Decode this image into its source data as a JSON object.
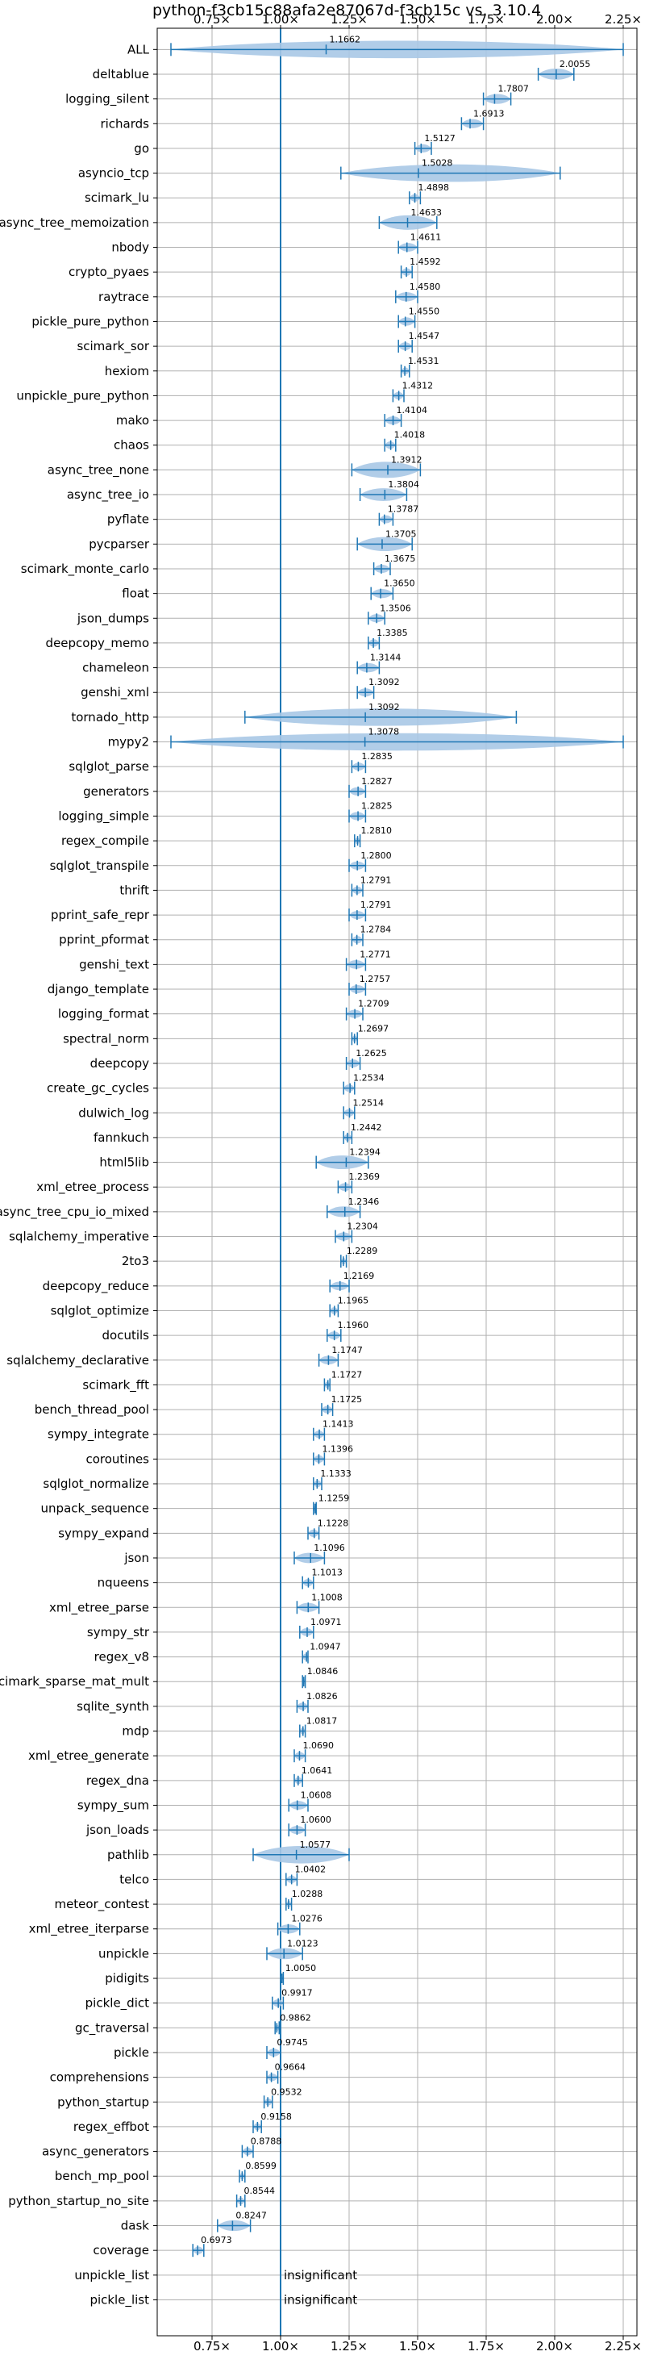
{
  "chart_data": {
    "type": "violin",
    "title": "python-f3cb15c88afa2e87067d-f3cb15c vs. 3.10.4",
    "xlim": [
      0.55,
      2.3
    ],
    "x_ticks": [
      0.75,
      1.0,
      1.25,
      1.5,
      1.75,
      2.0,
      2.25
    ],
    "x_tick_labels": [
      "0.75×",
      "1.00×",
      "1.25×",
      "1.50×",
      "1.75×",
      "2.00×",
      "2.25×"
    ],
    "reference_line": 1.0,
    "grid": true,
    "insignificant_text": "insignificant",
    "series": [
      {
        "name": "ALL",
        "value": "1.1662",
        "mean": 1.1662,
        "min": 0.6,
        "max": 2.25
      },
      {
        "name": "deltablue",
        "value": "2.0055",
        "mean": 2.0055,
        "min": 1.94,
        "max": 2.07
      },
      {
        "name": "logging_silent",
        "value": "1.7807",
        "mean": 1.7807,
        "min": 1.74,
        "max": 1.84
      },
      {
        "name": "richards",
        "value": "1.6913",
        "mean": 1.6913,
        "min": 1.66,
        "max": 1.74
      },
      {
        "name": "go",
        "value": "1.5127",
        "mean": 1.5127,
        "min": 1.49,
        "max": 1.55
      },
      {
        "name": "asyncio_tcp",
        "value": "1.5028",
        "mean": 1.5028,
        "min": 1.22,
        "max": 2.02
      },
      {
        "name": "scimark_lu",
        "value": "1.4898",
        "mean": 1.4898,
        "min": 1.47,
        "max": 1.51
      },
      {
        "name": "async_tree_memoization",
        "value": "1.4633",
        "mean": 1.4633,
        "min": 1.36,
        "max": 1.57
      },
      {
        "name": "nbody",
        "value": "1.4611",
        "mean": 1.4611,
        "min": 1.43,
        "max": 1.5
      },
      {
        "name": "crypto_pyaes",
        "value": "1.4592",
        "mean": 1.4592,
        "min": 1.44,
        "max": 1.48
      },
      {
        "name": "raytrace",
        "value": "1.4580",
        "mean": 1.458,
        "min": 1.42,
        "max": 1.5
      },
      {
        "name": "pickle_pure_python",
        "value": "1.4550",
        "mean": 1.455,
        "min": 1.43,
        "max": 1.49
      },
      {
        "name": "scimark_sor",
        "value": "1.4547",
        "mean": 1.4547,
        "min": 1.43,
        "max": 1.48
      },
      {
        "name": "hexiom",
        "value": "1.4531",
        "mean": 1.4531,
        "min": 1.44,
        "max": 1.47
      },
      {
        "name": "unpickle_pure_python",
        "value": "1.4312",
        "mean": 1.4312,
        "min": 1.41,
        "max": 1.45
      },
      {
        "name": "mako",
        "value": "1.4104",
        "mean": 1.4104,
        "min": 1.38,
        "max": 1.44
      },
      {
        "name": "chaos",
        "value": "1.4018",
        "mean": 1.4018,
        "min": 1.38,
        "max": 1.42
      },
      {
        "name": "async_tree_none",
        "value": "1.3912",
        "mean": 1.3912,
        "min": 1.26,
        "max": 1.51
      },
      {
        "name": "async_tree_io",
        "value": "1.3804",
        "mean": 1.3804,
        "min": 1.29,
        "max": 1.46
      },
      {
        "name": "pyflate",
        "value": "1.3787",
        "mean": 1.3787,
        "min": 1.36,
        "max": 1.41
      },
      {
        "name": "pycparser",
        "value": "1.3705",
        "mean": 1.3705,
        "min": 1.28,
        "max": 1.48
      },
      {
        "name": "scimark_monte_carlo",
        "value": "1.3675",
        "mean": 1.3675,
        "min": 1.34,
        "max": 1.4
      },
      {
        "name": "float",
        "value": "1.3650",
        "mean": 1.365,
        "min": 1.33,
        "max": 1.41
      },
      {
        "name": "json_dumps",
        "value": "1.3506",
        "mean": 1.3506,
        "min": 1.32,
        "max": 1.38
      },
      {
        "name": "deepcopy_memo",
        "value": "1.3385",
        "mean": 1.3385,
        "min": 1.32,
        "max": 1.36
      },
      {
        "name": "chameleon",
        "value": "1.3144",
        "mean": 1.3144,
        "min": 1.28,
        "max": 1.36
      },
      {
        "name": "genshi_xml",
        "value": "1.3092",
        "mean": 1.3092,
        "min": 1.28,
        "max": 1.34
      },
      {
        "name": "tornado_http",
        "value": "1.3092",
        "mean": 1.3092,
        "min": 0.87,
        "max": 1.86
      },
      {
        "name": "mypy2",
        "value": "1.3078",
        "mean": 1.3078,
        "min": 0.6,
        "max": 2.25
      },
      {
        "name": "sqlglot_parse",
        "value": "1.2835",
        "mean": 1.2835,
        "min": 1.26,
        "max": 1.31
      },
      {
        "name": "generators",
        "value": "1.2827",
        "mean": 1.2827,
        "min": 1.25,
        "max": 1.31
      },
      {
        "name": "logging_simple",
        "value": "1.2825",
        "mean": 1.2825,
        "min": 1.25,
        "max": 1.31
      },
      {
        "name": "regex_compile",
        "value": "1.2810",
        "mean": 1.281,
        "min": 1.27,
        "max": 1.29
      },
      {
        "name": "sqlglot_transpile",
        "value": "1.2800",
        "mean": 1.28,
        "min": 1.25,
        "max": 1.31
      },
      {
        "name": "thrift",
        "value": "1.2791",
        "mean": 1.2791,
        "min": 1.26,
        "max": 1.3
      },
      {
        "name": "pprint_safe_repr",
        "value": "1.2791",
        "mean": 1.2791,
        "min": 1.25,
        "max": 1.31
      },
      {
        "name": "pprint_pformat",
        "value": "1.2784",
        "mean": 1.2784,
        "min": 1.26,
        "max": 1.3
      },
      {
        "name": "genshi_text",
        "value": "1.2771",
        "mean": 1.2771,
        "min": 1.24,
        "max": 1.31
      },
      {
        "name": "django_template",
        "value": "1.2757",
        "mean": 1.2757,
        "min": 1.25,
        "max": 1.31
      },
      {
        "name": "logging_format",
        "value": "1.2709",
        "mean": 1.2709,
        "min": 1.24,
        "max": 1.3
      },
      {
        "name": "spectral_norm",
        "value": "1.2697",
        "mean": 1.2697,
        "min": 1.26,
        "max": 1.28
      },
      {
        "name": "deepcopy",
        "value": "1.2625",
        "mean": 1.2625,
        "min": 1.24,
        "max": 1.29
      },
      {
        "name": "create_gc_cycles",
        "value": "1.2534",
        "mean": 1.2534,
        "min": 1.23,
        "max": 1.27
      },
      {
        "name": "dulwich_log",
        "value": "1.2514",
        "mean": 1.2514,
        "min": 1.23,
        "max": 1.27
      },
      {
        "name": "fannkuch",
        "value": "1.2442",
        "mean": 1.2442,
        "min": 1.23,
        "max": 1.26
      },
      {
        "name": "html5lib",
        "value": "1.2394",
        "mean": 1.2394,
        "min": 1.13,
        "max": 1.32
      },
      {
        "name": "xml_etree_process",
        "value": "1.2369",
        "mean": 1.2369,
        "min": 1.21,
        "max": 1.26
      },
      {
        "name": "async_tree_cpu_io_mixed",
        "value": "1.2346",
        "mean": 1.2346,
        "min": 1.17,
        "max": 1.29
      },
      {
        "name": "sqlalchemy_imperative",
        "value": "1.2304",
        "mean": 1.2304,
        "min": 1.2,
        "max": 1.26
      },
      {
        "name": "2to3",
        "value": "1.2289",
        "mean": 1.2289,
        "min": 1.22,
        "max": 1.24
      },
      {
        "name": "deepcopy_reduce",
        "value": "1.2169",
        "mean": 1.2169,
        "min": 1.18,
        "max": 1.25
      },
      {
        "name": "sqlglot_optimize",
        "value": "1.1965",
        "mean": 1.1965,
        "min": 1.18,
        "max": 1.21
      },
      {
        "name": "docutils",
        "value": "1.1960",
        "mean": 1.196,
        "min": 1.17,
        "max": 1.22
      },
      {
        "name": "sqlalchemy_declarative",
        "value": "1.1747",
        "mean": 1.1747,
        "min": 1.14,
        "max": 1.21
      },
      {
        "name": "scimark_fft",
        "value": "1.1727",
        "mean": 1.1727,
        "min": 1.16,
        "max": 1.18
      },
      {
        "name": "bench_thread_pool",
        "value": "1.1725",
        "mean": 1.1725,
        "min": 1.15,
        "max": 1.19
      },
      {
        "name": "sympy_integrate",
        "value": "1.1413",
        "mean": 1.1413,
        "min": 1.12,
        "max": 1.16
      },
      {
        "name": "coroutines",
        "value": "1.1396",
        "mean": 1.1396,
        "min": 1.12,
        "max": 1.16
      },
      {
        "name": "sqlglot_normalize",
        "value": "1.1333",
        "mean": 1.1333,
        "min": 1.12,
        "max": 1.15
      },
      {
        "name": "unpack_sequence",
        "value": "1.1259",
        "mean": 1.1259,
        "min": 1.12,
        "max": 1.13
      },
      {
        "name": "sympy_expand",
        "value": "1.1228",
        "mean": 1.1228,
        "min": 1.1,
        "max": 1.14
      },
      {
        "name": "json",
        "value": "1.1096",
        "mean": 1.1096,
        "min": 1.05,
        "max": 1.16
      },
      {
        "name": "nqueens",
        "value": "1.1013",
        "mean": 1.1013,
        "min": 1.08,
        "max": 1.12
      },
      {
        "name": "xml_etree_parse",
        "value": "1.1008",
        "mean": 1.1008,
        "min": 1.06,
        "max": 1.14
      },
      {
        "name": "sympy_str",
        "value": "1.0971",
        "mean": 1.0971,
        "min": 1.07,
        "max": 1.12
      },
      {
        "name": "regex_v8",
        "value": "1.0947",
        "mean": 1.0947,
        "min": 1.08,
        "max": 1.1
      },
      {
        "name": "scimark_sparse_mat_mult",
        "value": "1.0846",
        "mean": 1.0846,
        "min": 1.08,
        "max": 1.09
      },
      {
        "name": "sqlite_synth",
        "value": "1.0826",
        "mean": 1.0826,
        "min": 1.06,
        "max": 1.1
      },
      {
        "name": "mdp",
        "value": "1.0817",
        "mean": 1.0817,
        "min": 1.07,
        "max": 1.09
      },
      {
        "name": "xml_etree_generate",
        "value": "1.0690",
        "mean": 1.069,
        "min": 1.05,
        "max": 1.09
      },
      {
        "name": "regex_dna",
        "value": "1.0641",
        "mean": 1.0641,
        "min": 1.05,
        "max": 1.08
      },
      {
        "name": "sympy_sum",
        "value": "1.0608",
        "mean": 1.0608,
        "min": 1.03,
        "max": 1.1
      },
      {
        "name": "json_loads",
        "value": "1.0600",
        "mean": 1.06,
        "min": 1.03,
        "max": 1.09
      },
      {
        "name": "pathlib",
        "value": "1.0577",
        "mean": 1.0577,
        "min": 0.9,
        "max": 1.25
      },
      {
        "name": "telco",
        "value": "1.0402",
        "mean": 1.0402,
        "min": 1.02,
        "max": 1.06
      },
      {
        "name": "meteor_contest",
        "value": "1.0288",
        "mean": 1.0288,
        "min": 1.02,
        "max": 1.04
      },
      {
        "name": "xml_etree_iterparse",
        "value": "1.0276",
        "mean": 1.0276,
        "min": 0.99,
        "max": 1.07
      },
      {
        "name": "unpickle",
        "value": "1.0123",
        "mean": 1.0123,
        "min": 0.95,
        "max": 1.08
      },
      {
        "name": "pidigits",
        "value": "1.0050",
        "mean": 1.005,
        "min": 1.0,
        "max": 1.01
      },
      {
        "name": "pickle_dict",
        "value": "0.9917",
        "mean": 0.9917,
        "min": 0.97,
        "max": 1.01
      },
      {
        "name": "gc_traversal",
        "value": "0.9862",
        "mean": 0.9862,
        "min": 0.98,
        "max": 0.995
      },
      {
        "name": "pickle",
        "value": "0.9745",
        "mean": 0.9745,
        "min": 0.95,
        "max": 1.0
      },
      {
        "name": "comprehensions",
        "value": "0.9664",
        "mean": 0.9664,
        "min": 0.95,
        "max": 0.99
      },
      {
        "name": "python_startup",
        "value": "0.9532",
        "mean": 0.9532,
        "min": 0.94,
        "max": 0.97
      },
      {
        "name": "regex_effbot",
        "value": "0.9158",
        "mean": 0.9158,
        "min": 0.9,
        "max": 0.93
      },
      {
        "name": "async_generators",
        "value": "0.8788",
        "mean": 0.8788,
        "min": 0.86,
        "max": 0.9
      },
      {
        "name": "bench_mp_pool",
        "value": "0.8599",
        "mean": 0.8599,
        "min": 0.85,
        "max": 0.87
      },
      {
        "name": "python_startup_no_site",
        "value": "0.8544",
        "mean": 0.8544,
        "min": 0.84,
        "max": 0.87
      },
      {
        "name": "dask",
        "value": "0.8247",
        "mean": 0.8247,
        "min": 0.77,
        "max": 0.89
      },
      {
        "name": "coverage",
        "value": "0.6973",
        "mean": 0.6973,
        "min": 0.68,
        "max": 0.72
      },
      {
        "name": "unpickle_list",
        "value": "",
        "mean": null,
        "insignificant": true
      },
      {
        "name": "pickle_list",
        "value": "",
        "mean": null,
        "insignificant": true
      }
    ]
  },
  "colors": {
    "violin_fill": "#a8c8e6",
    "stroke": "#1f77b4",
    "grid": "#b0b0b0",
    "axis": "#000000"
  }
}
